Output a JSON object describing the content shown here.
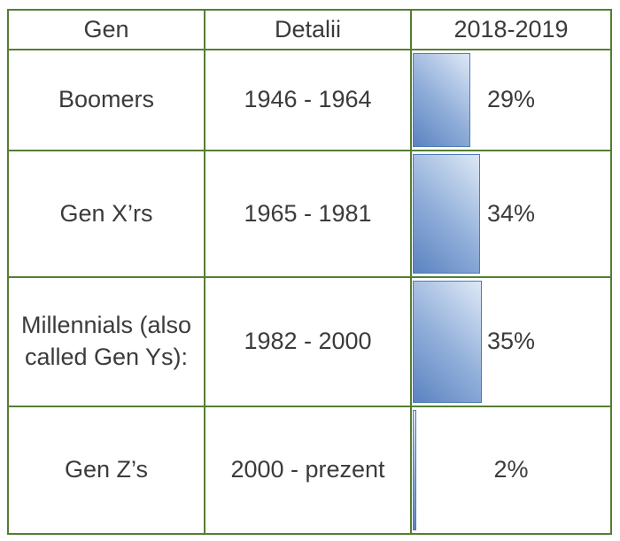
{
  "table": {
    "columns": [
      {
        "label": "Gen"
      },
      {
        "label": "Detalii"
      },
      {
        "label": "2018-2019"
      }
    ],
    "rows": [
      {
        "gen": "Boomers",
        "detalii": "1946 - 1964",
        "percent_label": "29%",
        "value": 29
      },
      {
        "gen": "Gen X’rs",
        "detalii": "1965 - 1981",
        "percent_label": "34%",
        "value": 34
      },
      {
        "gen": "Millennials (also called Gen Ys):",
        "detalii": "1982 - 2000",
        "percent_label": "35%",
        "value": 35
      },
      {
        "gen": "Gen Z’s",
        "detalii": "2000 - prezent",
        "percent_label": "2%",
        "value": 2
      }
    ]
  },
  "colors": {
    "table_border": "#567d33",
    "bar_border": "#4b7bb8",
    "bar_gradient_dark": "#5b83c1",
    "bar_gradient_light": "#dde8f6",
    "text": "#3b3b3b"
  },
  "chart_data": {
    "type": "bar",
    "orientation": "horizontal",
    "title": "",
    "series_name": "2018-2019",
    "columns": [
      "Gen",
      "Detalii",
      "2018-2019"
    ],
    "categories": [
      "Boomers",
      "Gen X’rs",
      "Millennials (also called Gen Ys):",
      "Gen Z’s"
    ],
    "category_details": [
      "1946 - 1964",
      "1965 - 1981",
      "1982 - 2000",
      "2000 - prezent"
    ],
    "values": [
      29,
      34,
      35,
      2
    ],
    "value_labels": [
      "29%",
      "34%",
      "35%",
      "2%"
    ],
    "xlim": [
      0,
      100
    ],
    "grid": false,
    "legend": false
  }
}
